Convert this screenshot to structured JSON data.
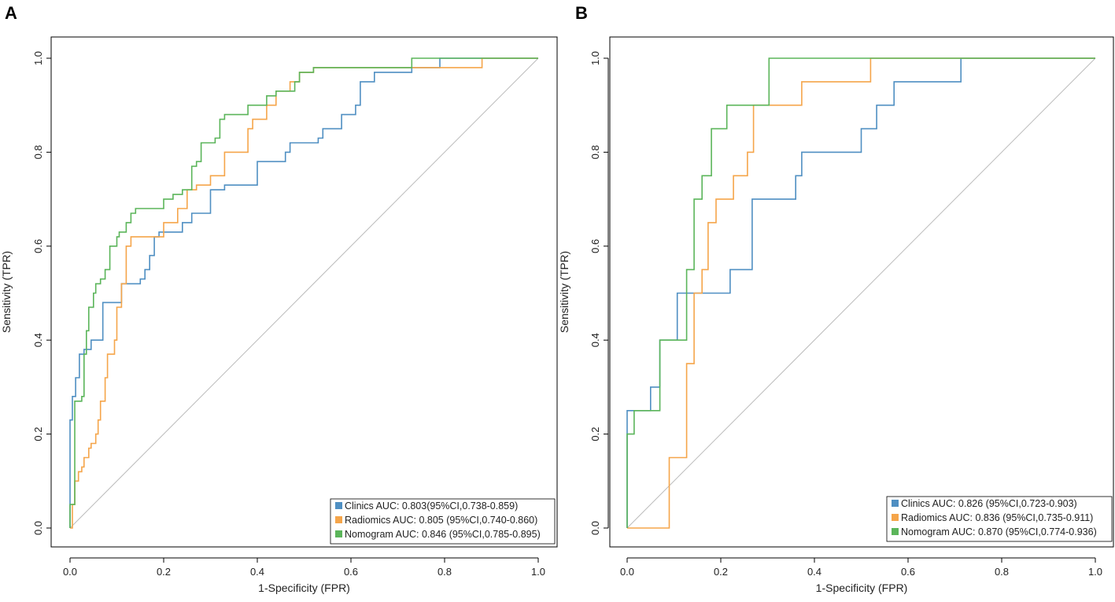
{
  "chart_data": [
    {
      "panel": "A",
      "type": "line",
      "subtype": "roc",
      "xlabel": "1-Specificity (FPR)",
      "ylabel": "Sensitivity (TPR)",
      "xlim": [
        0,
        1
      ],
      "ylim": [
        0,
        1
      ],
      "xticks": [
        "0.0",
        "0.2",
        "0.4",
        "0.6",
        "0.8",
        "1.0"
      ],
      "yticks": [
        "0.0",
        "0.2",
        "0.4",
        "0.6",
        "0.8",
        "1.0"
      ],
      "diagonal_reference": true,
      "legend_position": "bottom-right",
      "series": [
        {
          "name": "Clinics AUC: 0.803(95%CI,0.738-0.859)",
          "color": "#4f8fc2",
          "points": [
            [
              0,
              0
            ],
            [
              0,
              0.05
            ],
            [
              0,
              0.23
            ],
            [
              0.005,
              0.23
            ],
            [
              0.005,
              0.28
            ],
            [
              0.012,
              0.28
            ],
            [
              0.012,
              0.32
            ],
            [
              0.02,
              0.32
            ],
            [
              0.02,
              0.37
            ],
            [
              0.03,
              0.37
            ],
            [
              0.03,
              0.38
            ],
            [
              0.045,
              0.38
            ],
            [
              0.045,
              0.4
            ],
            [
              0.07,
              0.4
            ],
            [
              0.07,
              0.48
            ],
            [
              0.11,
              0.48
            ],
            [
              0.11,
              0.52
            ],
            [
              0.15,
              0.52
            ],
            [
              0.15,
              0.53
            ],
            [
              0.16,
              0.53
            ],
            [
              0.16,
              0.55
            ],
            [
              0.17,
              0.55
            ],
            [
              0.17,
              0.58
            ],
            [
              0.18,
              0.58
            ],
            [
              0.18,
              0.62
            ],
            [
              0.19,
              0.62
            ],
            [
              0.19,
              0.63
            ],
            [
              0.24,
              0.63
            ],
            [
              0.24,
              0.65
            ],
            [
              0.26,
              0.65
            ],
            [
              0.26,
              0.67
            ],
            [
              0.3,
              0.67
            ],
            [
              0.3,
              0.72
            ],
            [
              0.33,
              0.72
            ],
            [
              0.33,
              0.73
            ],
            [
              0.4,
              0.73
            ],
            [
              0.4,
              0.78
            ],
            [
              0.46,
              0.78
            ],
            [
              0.46,
              0.8
            ],
            [
              0.47,
              0.8
            ],
            [
              0.47,
              0.82
            ],
            [
              0.53,
              0.82
            ],
            [
              0.53,
              0.83
            ],
            [
              0.54,
              0.83
            ],
            [
              0.54,
              0.85
            ],
            [
              0.58,
              0.85
            ],
            [
              0.58,
              0.88
            ],
            [
              0.61,
              0.88
            ],
            [
              0.61,
              0.9
            ],
            [
              0.62,
              0.9
            ],
            [
              0.62,
              0.95
            ],
            [
              0.65,
              0.95
            ],
            [
              0.65,
              0.97
            ],
            [
              0.73,
              0.97
            ],
            [
              0.73,
              0.98
            ],
            [
              0.79,
              0.98
            ],
            [
              0.79,
              1.0
            ],
            [
              1.0,
              1.0
            ]
          ]
        },
        {
          "name": "Radiomics AUC: 0.805 (95%CI,0.740-0.860)",
          "color": "#f5a54a",
          "points": [
            [
              0,
              0
            ],
            [
              0.005,
              0
            ],
            [
              0.005,
              0.05
            ],
            [
              0.01,
              0.05
            ],
            [
              0.01,
              0.1
            ],
            [
              0.018,
              0.1
            ],
            [
              0.018,
              0.12
            ],
            [
              0.025,
              0.12
            ],
            [
              0.025,
              0.13
            ],
            [
              0.03,
              0.13
            ],
            [
              0.03,
              0.15
            ],
            [
              0.04,
              0.15
            ],
            [
              0.04,
              0.17
            ],
            [
              0.045,
              0.17
            ],
            [
              0.045,
              0.18
            ],
            [
              0.055,
              0.18
            ],
            [
              0.055,
              0.2
            ],
            [
              0.06,
              0.2
            ],
            [
              0.06,
              0.23
            ],
            [
              0.065,
              0.23
            ],
            [
              0.065,
              0.27
            ],
            [
              0.075,
              0.27
            ],
            [
              0.075,
              0.32
            ],
            [
              0.08,
              0.32
            ],
            [
              0.08,
              0.37
            ],
            [
              0.095,
              0.37
            ],
            [
              0.095,
              0.4
            ],
            [
              0.1,
              0.4
            ],
            [
              0.1,
              0.47
            ],
            [
              0.11,
              0.47
            ],
            [
              0.11,
              0.52
            ],
            [
              0.12,
              0.52
            ],
            [
              0.12,
              0.6
            ],
            [
              0.13,
              0.6
            ],
            [
              0.13,
              0.62
            ],
            [
              0.2,
              0.62
            ],
            [
              0.2,
              0.65
            ],
            [
              0.23,
              0.65
            ],
            [
              0.23,
              0.68
            ],
            [
              0.25,
              0.68
            ],
            [
              0.25,
              0.72
            ],
            [
              0.27,
              0.72
            ],
            [
              0.27,
              0.73
            ],
            [
              0.3,
              0.73
            ],
            [
              0.3,
              0.75
            ],
            [
              0.33,
              0.75
            ],
            [
              0.33,
              0.8
            ],
            [
              0.38,
              0.8
            ],
            [
              0.38,
              0.85
            ],
            [
              0.39,
              0.85
            ],
            [
              0.39,
              0.87
            ],
            [
              0.42,
              0.87
            ],
            [
              0.42,
              0.9
            ],
            [
              0.44,
              0.9
            ],
            [
              0.44,
              0.93
            ],
            [
              0.47,
              0.93
            ],
            [
              0.47,
              0.95
            ],
            [
              0.49,
              0.95
            ],
            [
              0.49,
              0.97
            ],
            [
              0.52,
              0.97
            ],
            [
              0.52,
              0.98
            ],
            [
              0.88,
              0.98
            ],
            [
              0.88,
              1.0
            ],
            [
              1.0,
              1.0
            ]
          ]
        },
        {
          "name": "Nomogram AUC: 0.846 (95%CI,0.785-0.895)",
          "color": "#5bb55a",
          "points": [
            [
              0,
              0
            ],
            [
              0,
              0.05
            ],
            [
              0.01,
              0.05
            ],
            [
              0.01,
              0.27
            ],
            [
              0.025,
              0.27
            ],
            [
              0.025,
              0.28
            ],
            [
              0.03,
              0.28
            ],
            [
              0.03,
              0.37
            ],
            [
              0.035,
              0.37
            ],
            [
              0.035,
              0.42
            ],
            [
              0.04,
              0.42
            ],
            [
              0.04,
              0.47
            ],
            [
              0.05,
              0.47
            ],
            [
              0.05,
              0.5
            ],
            [
              0.055,
              0.5
            ],
            [
              0.055,
              0.52
            ],
            [
              0.065,
              0.52
            ],
            [
              0.065,
              0.53
            ],
            [
              0.075,
              0.53
            ],
            [
              0.075,
              0.55
            ],
            [
              0.085,
              0.55
            ],
            [
              0.085,
              0.6
            ],
            [
              0.1,
              0.6
            ],
            [
              0.1,
              0.62
            ],
            [
              0.105,
              0.62
            ],
            [
              0.105,
              0.63
            ],
            [
              0.12,
              0.63
            ],
            [
              0.12,
              0.65
            ],
            [
              0.13,
              0.65
            ],
            [
              0.13,
              0.67
            ],
            [
              0.14,
              0.67
            ],
            [
              0.14,
              0.68
            ],
            [
              0.2,
              0.68
            ],
            [
              0.2,
              0.7
            ],
            [
              0.22,
              0.7
            ],
            [
              0.22,
              0.71
            ],
            [
              0.24,
              0.71
            ],
            [
              0.24,
              0.72
            ],
            [
              0.26,
              0.72
            ],
            [
              0.26,
              0.77
            ],
            [
              0.27,
              0.77
            ],
            [
              0.27,
              0.78
            ],
            [
              0.28,
              0.78
            ],
            [
              0.28,
              0.82
            ],
            [
              0.31,
              0.82
            ],
            [
              0.31,
              0.83
            ],
            [
              0.32,
              0.83
            ],
            [
              0.32,
              0.87
            ],
            [
              0.33,
              0.87
            ],
            [
              0.33,
              0.88
            ],
            [
              0.38,
              0.88
            ],
            [
              0.38,
              0.9
            ],
            [
              0.42,
              0.9
            ],
            [
              0.42,
              0.92
            ],
            [
              0.44,
              0.92
            ],
            [
              0.44,
              0.93
            ],
            [
              0.48,
              0.93
            ],
            [
              0.48,
              0.95
            ],
            [
              0.49,
              0.95
            ],
            [
              0.49,
              0.97
            ],
            [
              0.52,
              0.97
            ],
            [
              0.52,
              0.98
            ],
            [
              0.73,
              0.98
            ],
            [
              0.73,
              1.0
            ],
            [
              1.0,
              1.0
            ]
          ]
        }
      ]
    },
    {
      "panel": "B",
      "type": "line",
      "subtype": "roc",
      "xlabel": "1-Specificity (FPR)",
      "ylabel": "Sensitivity (TPR)",
      "xlim": [
        0,
        1
      ],
      "ylim": [
        0,
        1
      ],
      "xticks": [
        "0.0",
        "0.2",
        "0.4",
        "0.6",
        "0.8",
        "1.0"
      ],
      "yticks": [
        "0.0",
        "0.2",
        "0.4",
        "0.6",
        "0.8",
        "1.0"
      ],
      "diagonal_reference": true,
      "legend_position": "bottom-right",
      "series": [
        {
          "name": "Clinics AUC: 0.826 (95%CI,0.723-0.903)",
          "color": "#4f8fc2",
          "points": [
            [
              0,
              0
            ],
            [
              0,
              0.25
            ],
            [
              0.05,
              0.25
            ],
            [
              0.05,
              0.3
            ],
            [
              0.07,
              0.3
            ],
            [
              0.07,
              0.4
            ],
            [
              0.107,
              0.4
            ],
            [
              0.107,
              0.5
            ],
            [
              0.22,
              0.5
            ],
            [
              0.22,
              0.55
            ],
            [
              0.267,
              0.55
            ],
            [
              0.267,
              0.7
            ],
            [
              0.36,
              0.7
            ],
            [
              0.36,
              0.75
            ],
            [
              0.373,
              0.75
            ],
            [
              0.373,
              0.8
            ],
            [
              0.5,
              0.8
            ],
            [
              0.5,
              0.85
            ],
            [
              0.533,
              0.85
            ],
            [
              0.533,
              0.9
            ],
            [
              0.57,
              0.9
            ],
            [
              0.57,
              0.95
            ],
            [
              0.713,
              0.95
            ],
            [
              0.713,
              1.0
            ],
            [
              1.0,
              1.0
            ]
          ]
        },
        {
          "name": "Radiomics AUC: 0.836 (95%CI,0.735-0.911)",
          "color": "#f5a54a",
          "points": [
            [
              0,
              0
            ],
            [
              0.09,
              0
            ],
            [
              0.09,
              0.15
            ],
            [
              0.127,
              0.15
            ],
            [
              0.127,
              0.35
            ],
            [
              0.143,
              0.35
            ],
            [
              0.143,
              0.5
            ],
            [
              0.16,
              0.5
            ],
            [
              0.16,
              0.55
            ],
            [
              0.173,
              0.55
            ],
            [
              0.173,
              0.65
            ],
            [
              0.19,
              0.65
            ],
            [
              0.19,
              0.7
            ],
            [
              0.227,
              0.7
            ],
            [
              0.227,
              0.75
            ],
            [
              0.257,
              0.75
            ],
            [
              0.257,
              0.8
            ],
            [
              0.27,
              0.8
            ],
            [
              0.27,
              0.9
            ],
            [
              0.373,
              0.9
            ],
            [
              0.373,
              0.95
            ],
            [
              0.52,
              0.95
            ],
            [
              0.52,
              1.0
            ],
            [
              1.0,
              1.0
            ]
          ]
        },
        {
          "name": "Nomogram AUC: 0.870 (95%CI,0.774-0.936)",
          "color": "#5bb55a",
          "points": [
            [
              0,
              0
            ],
            [
              0,
              0.2
            ],
            [
              0.015,
              0.2
            ],
            [
              0.015,
              0.25
            ],
            [
              0.07,
              0.25
            ],
            [
              0.07,
              0.4
            ],
            [
              0.127,
              0.4
            ],
            [
              0.127,
              0.55
            ],
            [
              0.143,
              0.55
            ],
            [
              0.143,
              0.7
            ],
            [
              0.16,
              0.7
            ],
            [
              0.16,
              0.75
            ],
            [
              0.18,
              0.75
            ],
            [
              0.18,
              0.85
            ],
            [
              0.213,
              0.85
            ],
            [
              0.213,
              0.9
            ],
            [
              0.303,
              0.9
            ],
            [
              0.303,
              1.0
            ],
            [
              1.0,
              1.0
            ]
          ]
        }
      ]
    }
  ]
}
